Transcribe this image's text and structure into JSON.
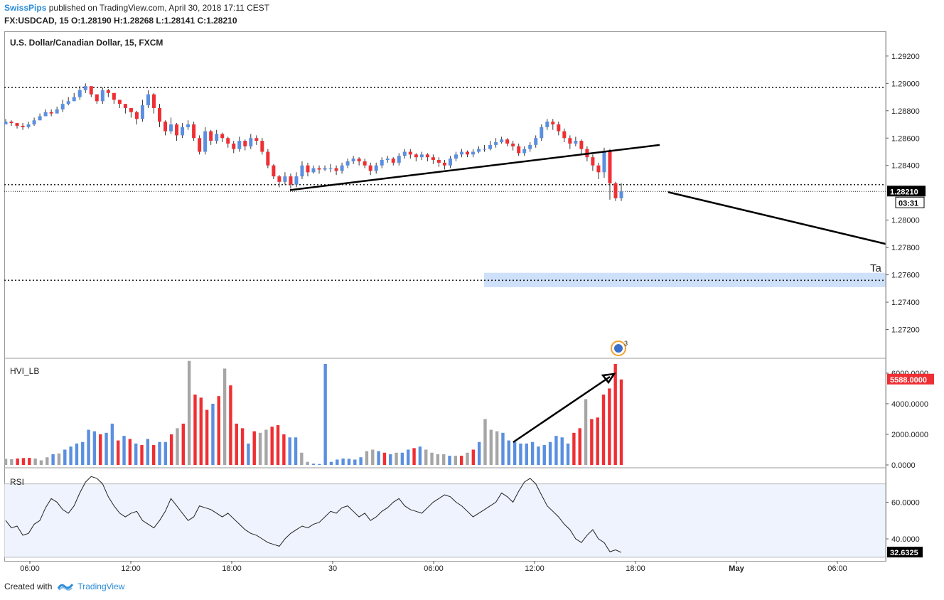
{
  "header": {
    "author": "SwissPips",
    "published_text": "published on TradingView.com, April 30, 2018 17:11 CEST",
    "ohlc_text": "FX:USDCAD, 15  O:1.28190 H:1.28268 L:1.28141 C:1.28210"
  },
  "footer": {
    "created_with": "Created with",
    "brand": "TradingView"
  },
  "colors": {
    "up": "#5b8fe0",
    "down": "#ef2f33",
    "neutral": "#a6a6a6",
    "line": "#000000",
    "target_zone": "#cfe0fa",
    "rsi_band": "#eef3fd",
    "price_label_bg": "#000000",
    "volume_label_bg": "#ef2f33"
  },
  "chart_data": [
    {
      "type": "candlestick",
      "title": "U.S. Dollar/Canadian Dollar, 15, FXCM",
      "ylim": [
        1.27,
        1.2935
      ],
      "y_ticks": [
        "1.29200",
        "1.29000",
        "1.28800",
        "1.28600",
        "1.28400",
        "1.28000",
        "1.27800",
        "1.27600",
        "1.27400",
        "1.27200"
      ],
      "x_ticks": [
        "06:00",
        "12:00",
        "18:00",
        "30",
        "06:00",
        "12:00",
        "18:00",
        "May",
        "06:00"
      ],
      "last_price_label": "1.28210",
      "countdown_label": "03:31",
      "target_label": "Ta",
      "event_badge": "3",
      "horizontal_levels": [
        1.2897,
        1.2826,
        1.2756
      ],
      "last_price": 1.2821,
      "closes": [
        1.2872,
        1.2871,
        1.2869,
        1.2868,
        1.287,
        1.2873,
        1.2876,
        1.2879,
        1.2878,
        1.2881,
        1.2885,
        1.2887,
        1.289,
        1.2895,
        1.2898,
        1.2892,
        1.2887,
        1.2895,
        1.2893,
        1.2888,
        1.2885,
        1.2882,
        1.2879,
        1.2874,
        1.2884,
        1.2892,
        1.2882,
        1.2872,
        1.2865,
        1.287,
        1.2862,
        1.2868,
        1.287,
        1.286,
        1.285,
        1.2865,
        1.2858,
        1.2863,
        1.286,
        1.2856,
        1.2852,
        1.2858,
        1.2854,
        1.286,
        1.2858,
        1.285,
        1.284,
        1.2832,
        1.2828,
        1.2832,
        1.2826,
        1.2832,
        1.284,
        1.2835,
        1.2838,
        1.2837,
        1.2838,
        1.2838,
        1.2836,
        1.284,
        1.2843,
        1.2845,
        1.2843,
        1.284,
        1.2836,
        1.284,
        1.2844,
        1.2845,
        1.2842,
        1.2847,
        1.285,
        1.2848,
        1.2846,
        1.2848,
        1.2846,
        1.2844,
        1.2842,
        1.284,
        1.2845,
        1.2848,
        1.285,
        1.2848,
        1.285,
        1.2852,
        1.2852,
        1.2855,
        1.2857,
        1.2859,
        1.2856,
        1.2854,
        1.2849,
        1.2852,
        1.2855,
        1.286,
        1.2868,
        1.2872,
        1.287,
        1.2865,
        1.286,
        1.2856,
        1.2858,
        1.2852,
        1.2846,
        1.284,
        1.2835,
        1.285,
        1.2827,
        1.2816,
        1.2821
      ],
      "highs": [
        1.2874,
        1.2873,
        1.2871,
        1.2871,
        1.2872,
        1.2875,
        1.2878,
        1.2881,
        1.2881,
        1.2883,
        1.2888,
        1.289,
        1.2893,
        1.2898,
        1.29,
        1.2897,
        1.2892,
        1.2897,
        1.2896,
        1.2891,
        1.2888,
        1.2885,
        1.2882,
        1.288,
        1.2888,
        1.2895,
        1.2893,
        1.2885,
        1.2873,
        1.2875,
        1.2871,
        1.2871,
        1.2873,
        1.2872,
        1.2862,
        1.2868,
        1.2866,
        1.2866,
        1.2864,
        1.2861,
        1.2858,
        1.2861,
        1.2859,
        1.2863,
        1.2862,
        1.286,
        1.2852,
        1.2841,
        1.2833,
        1.2835,
        1.2834,
        1.2835,
        1.2843,
        1.2842,
        1.284,
        1.284,
        1.284,
        1.2841,
        1.284,
        1.2842,
        1.2845,
        1.2847,
        1.2846,
        1.2845,
        1.2842,
        1.2842,
        1.2846,
        1.2847,
        1.2846,
        1.2849,
        1.2852,
        1.2852,
        1.2849,
        1.285,
        1.2849,
        1.2848,
        1.2846,
        1.2844,
        1.2847,
        1.285,
        1.2852,
        1.2851,
        1.2852,
        1.2854,
        1.2855,
        1.2858,
        1.286,
        1.2861,
        1.286,
        1.2858,
        1.2856,
        1.2854,
        1.2857,
        1.2862,
        1.287,
        1.2874,
        1.2874,
        1.2872,
        1.2867,
        1.2862,
        1.2861,
        1.2859,
        1.2854,
        1.2848,
        1.2842,
        1.2853,
        1.2852,
        1.2828,
        1.2827
      ],
      "lows": [
        1.287,
        1.2869,
        1.2867,
        1.2866,
        1.2867,
        1.2869,
        1.2873,
        1.2876,
        1.2876,
        1.2878,
        1.2879,
        1.2884,
        1.2887,
        1.2888,
        1.2893,
        1.289,
        1.2885,
        1.2885,
        1.289,
        1.2885,
        1.2882,
        1.2878,
        1.2875,
        1.287,
        1.2872,
        1.2882,
        1.2878,
        1.2868,
        1.2862,
        1.2863,
        1.2858,
        1.286,
        1.2866,
        1.2858,
        1.2848,
        1.2848,
        1.2855,
        1.2856,
        1.2857,
        1.2853,
        1.2849,
        1.285,
        1.2851,
        1.2852,
        1.2855,
        1.2848,
        1.2838,
        1.283,
        1.2824,
        1.2826,
        1.2823,
        1.2824,
        1.283,
        1.2832,
        1.2834,
        1.2834,
        1.2836,
        1.2835,
        1.2833,
        1.2834,
        1.2838,
        1.2841,
        1.284,
        1.2838,
        1.2833,
        1.2834,
        1.2838,
        1.2842,
        1.284,
        1.284,
        1.2845,
        1.2845,
        1.2843,
        1.2844,
        1.2843,
        1.2841,
        1.2839,
        1.2837,
        1.2838,
        1.2843,
        1.2846,
        1.2846,
        1.2846,
        1.2849,
        1.285,
        1.2851,
        1.2853,
        1.2856,
        1.2854,
        1.2851,
        1.2847,
        1.2847,
        1.285,
        1.2853,
        1.2858,
        1.2866,
        1.2866,
        1.2862,
        1.2857,
        1.2852,
        1.2854,
        1.2848,
        1.2843,
        1.2836,
        1.283,
        1.2831,
        1.2815,
        1.2814,
        1.2814
      ]
    },
    {
      "type": "bar",
      "title": "HVI_LB",
      "ylim": [
        0,
        6600
      ],
      "y_ticks": [
        "6000.0000",
        "4000.0000",
        "2000.0000",
        "0.0000"
      ],
      "last_value_label": "5588.0000",
      "values": [
        400,
        380,
        420,
        450,
        460,
        420,
        300,
        500,
        700,
        750,
        1000,
        1200,
        1400,
        1500,
        2300,
        2200,
        2000,
        2100,
        2700,
        1600,
        1900,
        1700,
        1400,
        1300,
        1700,
        1300,
        1500,
        1500,
        2000,
        2400,
        2700,
        6800,
        4600,
        4400,
        3600,
        4000,
        4500,
        6300,
        5200,
        2700,
        2400,
        1400,
        2200,
        2100,
        2300,
        2500,
        2600,
        2000,
        1800,
        1800,
        800,
        200,
        80,
        60,
        6600,
        200,
        350,
        420,
        400,
        350,
        500,
        900,
        1000,
        900,
        800,
        700,
        800,
        800,
        1000,
        1100,
        1200,
        1000,
        800,
        700,
        700,
        600,
        600,
        600,
        800,
        1000,
        1500,
        3000,
        2300,
        2200,
        2100,
        1600,
        1500,
        1400,
        1400,
        1500,
        1200,
        1300,
        1500,
        1900,
        1800,
        1400,
        2100,
        2400,
        4300,
        3000,
        3100,
        4600,
        5000,
        6600,
        5588
      ],
      "colors": [
        "n",
        "n",
        "d",
        "d",
        "d",
        "n",
        "n",
        "n",
        "u",
        "n",
        "u",
        "u",
        "u",
        "u",
        "u",
        "u",
        "d",
        "u",
        "u",
        "d",
        "u",
        "d",
        "u",
        "d",
        "u",
        "d",
        "u",
        "u",
        "d",
        "n",
        "d",
        "n",
        "d",
        "d",
        "d",
        "u",
        "d",
        "n",
        "d",
        "d",
        "d",
        "u",
        "d",
        "n",
        "n",
        "d",
        "d",
        "d",
        "u",
        "u",
        "n",
        "n",
        "u",
        "u",
        "u",
        "u",
        "u",
        "u",
        "u",
        "u",
        "u",
        "n",
        "n",
        "u",
        "d",
        "u",
        "n",
        "u",
        "u",
        "d",
        "u",
        "n",
        "n",
        "n",
        "n",
        "u",
        "n",
        "d",
        "n",
        "d",
        "u",
        "n",
        "n",
        "n",
        "u",
        "u",
        "u",
        "u",
        "u",
        "u",
        "u",
        "u",
        "u",
        "u",
        "u",
        "u",
        "d",
        "d",
        "n",
        "d",
        "d",
        "d",
        "d",
        "d",
        "d",
        "d"
      ]
    },
    {
      "type": "line",
      "title": "RSI",
      "ylim": [
        28,
        78
      ],
      "y_ticks": [
        "60.0000",
        "40.0000"
      ],
      "band": [
        30,
        70
      ],
      "last_value_label": "32.6325",
      "values": [
        50,
        46,
        47,
        42,
        43,
        48,
        50,
        57,
        62,
        60,
        56,
        54,
        58,
        65,
        71,
        74,
        73,
        70,
        63,
        58,
        54,
        52,
        54,
        55,
        50,
        48,
        46,
        50,
        55,
        62,
        58,
        54,
        50,
        52,
        58,
        57,
        56,
        54,
        52,
        54,
        51,
        48,
        45,
        43,
        42,
        40,
        38,
        37,
        36,
        40,
        43,
        45,
        47,
        46,
        48,
        49,
        52,
        55,
        54,
        57,
        58,
        55,
        52,
        54,
        50,
        52,
        55,
        57,
        60,
        62,
        58,
        56,
        55,
        54,
        57,
        60,
        62,
        64,
        63,
        60,
        58,
        55,
        52,
        54,
        56,
        58,
        60,
        65,
        63,
        60,
        66,
        71,
        73,
        70,
        64,
        58,
        55,
        52,
        48,
        45,
        40,
        38,
        42,
        45,
        40,
        38,
        33,
        34,
        32.6
      ]
    }
  ]
}
